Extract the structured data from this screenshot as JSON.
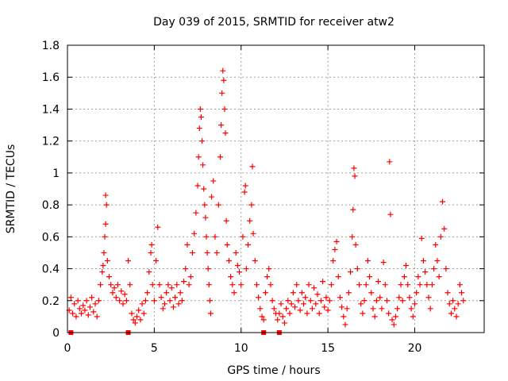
{
  "chart_data": {
    "type": "scatter",
    "title": "Day 039 of 2015, SRMTID for receiver atw2",
    "xlabel": "GPS time / hours",
    "ylabel": "SRMTID / TECUs",
    "xlim": [
      0,
      24
    ],
    "ylim": [
      0,
      1.8
    ],
    "x_ticks": [
      0,
      5,
      10,
      15,
      20
    ],
    "x_tick_labels": [
      "0",
      "5",
      "10",
      "15",
      "20"
    ],
    "y_ticks": [
      0,
      0.2,
      0.4,
      0.6,
      0.8,
      1,
      1.2,
      1.4,
      1.6,
      1.8
    ],
    "y_tick_labels": [
      "0",
      "0.2",
      "0.4",
      "0.6",
      "0.8",
      "1",
      "1.2",
      "1.4",
      "1.6",
      "1.8"
    ],
    "grid": true,
    "marker": "+",
    "colors": {
      "series": "#ff0000",
      "axes": "#000000",
      "grid": "#a0a0a0"
    },
    "series": [
      {
        "name": "SRMTID",
        "points": [
          [
            0.1,
            0.14
          ],
          [
            0.2,
            0.22
          ],
          [
            0.3,
            0.12
          ],
          [
            0.4,
            0.18
          ],
          [
            0.5,
            0.1
          ],
          [
            0.6,
            0.2
          ],
          [
            0.7,
            0.15
          ],
          [
            0.8,
            0.12
          ],
          [
            0.9,
            0.17
          ],
          [
            1.0,
            0.14
          ],
          [
            1.1,
            0.2
          ],
          [
            1.2,
            0.11
          ],
          [
            1.3,
            0.16
          ],
          [
            1.4,
            0.22
          ],
          [
            1.5,
            0.13
          ],
          [
            1.6,
            0.18
          ],
          [
            1.7,
            0.1
          ],
          [
            1.8,
            0.2
          ],
          [
            1.9,
            0.3
          ],
          [
            2.0,
            0.38
          ],
          [
            2.05,
            0.42
          ],
          [
            2.1,
            0.5
          ],
          [
            2.15,
            0.6
          ],
          [
            2.2,
            0.68
          ],
          [
            2.25,
            0.8
          ],
          [
            2.2,
            0.86
          ],
          [
            2.3,
            0.45
          ],
          [
            2.4,
            0.35
          ],
          [
            2.5,
            0.3
          ],
          [
            2.6,
            0.25
          ],
          [
            2.7,
            0.28
          ],
          [
            2.8,
            0.22
          ],
          [
            2.9,
            0.3
          ],
          [
            3.0,
            0.2
          ],
          [
            3.1,
            0.26
          ],
          [
            3.2,
            0.18
          ],
          [
            3.3,
            0.24
          ],
          [
            3.4,
            0.2
          ],
          [
            3.5,
            0.45
          ],
          [
            3.6,
            0.3
          ],
          [
            3.7,
            0.12
          ],
          [
            3.8,
            0.08
          ],
          [
            3.9,
            0.06
          ],
          [
            4.0,
            0.1
          ],
          [
            4.1,
            0.14
          ],
          [
            4.2,
            0.08
          ],
          [
            4.3,
            0.18
          ],
          [
            4.4,
            0.12
          ],
          [
            4.5,
            0.2
          ],
          [
            4.6,
            0.25
          ],
          [
            4.7,
            0.38
          ],
          [
            4.8,
            0.5
          ],
          [
            4.85,
            0.55
          ],
          [
            4.9,
            0.3
          ],
          [
            5.0,
            0.2
          ],
          [
            5.1,
            0.45
          ],
          [
            5.2,
            0.66
          ],
          [
            5.3,
            0.3
          ],
          [
            5.4,
            0.22
          ],
          [
            5.5,
            0.15
          ],
          [
            5.6,
            0.18
          ],
          [
            5.7,
            0.25
          ],
          [
            5.8,
            0.3
          ],
          [
            5.9,
            0.2
          ],
          [
            6.0,
            0.28
          ],
          [
            6.1,
            0.16
          ],
          [
            6.2,
            0.22
          ],
          [
            6.3,
            0.3
          ],
          [
            6.4,
            0.18
          ],
          [
            6.5,
            0.25
          ],
          [
            6.6,
            0.2
          ],
          [
            6.7,
            0.32
          ],
          [
            6.8,
            0.4
          ],
          [
            6.9,
            0.55
          ],
          [
            7.0,
            0.3
          ],
          [
            7.1,
            0.35
          ],
          [
            7.2,
            0.5
          ],
          [
            7.3,
            0.62
          ],
          [
            7.4,
            0.75
          ],
          [
            7.5,
            0.92
          ],
          [
            7.55,
            1.1
          ],
          [
            7.6,
            1.28
          ],
          [
            7.65,
            1.4
          ],
          [
            7.7,
            1.35
          ],
          [
            7.75,
            1.2
          ],
          [
            7.8,
            1.05
          ],
          [
            7.85,
            0.9
          ],
          [
            7.9,
            0.8
          ],
          [
            7.95,
            0.72
          ],
          [
            8.0,
            0.6
          ],
          [
            8.05,
            0.5
          ],
          [
            8.1,
            0.4
          ],
          [
            8.15,
            0.3
          ],
          [
            8.2,
            0.2
          ],
          [
            8.25,
            0.12
          ],
          [
            8.3,
            0.85
          ],
          [
            8.4,
            0.95
          ],
          [
            8.5,
            0.6
          ],
          [
            8.6,
            0.5
          ],
          [
            8.7,
            0.8
          ],
          [
            8.8,
            1.1
          ],
          [
            8.85,
            1.3
          ],
          [
            8.9,
            1.5
          ],
          [
            8.95,
            1.64
          ],
          [
            9.0,
            1.58
          ],
          [
            9.05,
            1.4
          ],
          [
            9.1,
            1.25
          ],
          [
            9.15,
            0.7
          ],
          [
            9.2,
            0.55
          ],
          [
            9.3,
            0.45
          ],
          [
            9.4,
            0.35
          ],
          [
            9.5,
            0.3
          ],
          [
            9.6,
            0.25
          ],
          [
            9.7,
            0.5
          ],
          [
            9.8,
            0.42
          ],
          [
            9.9,
            0.38
          ],
          [
            10.0,
            0.3
          ],
          [
            10.1,
            0.6
          ],
          [
            10.2,
            0.88
          ],
          [
            10.25,
            0.92
          ],
          [
            10.3,
            0.4
          ],
          [
            10.4,
            0.55
          ],
          [
            10.5,
            0.7
          ],
          [
            10.6,
            0.8
          ],
          [
            10.65,
            1.04
          ],
          [
            10.7,
            0.62
          ],
          [
            10.8,
            0.45
          ],
          [
            10.9,
            0.3
          ],
          [
            11.0,
            0.22
          ],
          [
            11.1,
            0.15
          ],
          [
            11.2,
            0.1
          ],
          [
            11.3,
            0.08
          ],
          [
            11.4,
            0.25
          ],
          [
            11.5,
            0.35
          ],
          [
            11.6,
            0.4
          ],
          [
            11.7,
            0.3
          ],
          [
            11.8,
            0.2
          ],
          [
            11.9,
            0.15
          ],
          [
            12.0,
            0.12
          ],
          [
            12.1,
            0.08
          ],
          [
            12.2,
            0.12
          ],
          [
            12.3,
            0.18
          ],
          [
            12.4,
            0.1
          ],
          [
            12.5,
            0.06
          ],
          [
            12.6,
            0.15
          ],
          [
            12.7,
            0.2
          ],
          [
            12.8,
            0.12
          ],
          [
            12.9,
            0.18
          ],
          [
            13.0,
            0.25
          ],
          [
            13.1,
            0.16
          ],
          [
            13.2,
            0.3
          ],
          [
            13.3,
            0.2
          ],
          [
            13.4,
            0.14
          ],
          [
            13.5,
            0.25
          ],
          [
            13.6,
            0.18
          ],
          [
            13.7,
            0.22
          ],
          [
            13.8,
            0.12
          ],
          [
            13.9,
            0.3
          ],
          [
            14.0,
            0.2
          ],
          [
            14.1,
            0.15
          ],
          [
            14.2,
            0.28
          ],
          [
            14.3,
            0.18
          ],
          [
            14.4,
            0.24
          ],
          [
            14.5,
            0.12
          ],
          [
            14.6,
            0.2
          ],
          [
            14.7,
            0.32
          ],
          [
            14.8,
            0.16
          ],
          [
            14.9,
            0.22
          ],
          [
            15.0,
            0.14
          ],
          [
            15.1,
            0.2
          ],
          [
            15.2,
            0.3
          ],
          [
            15.3,
            0.45
          ],
          [
            15.4,
            0.52
          ],
          [
            15.5,
            0.57
          ],
          [
            15.6,
            0.35
          ],
          [
            15.7,
            0.22
          ],
          [
            15.8,
            0.16
          ],
          [
            15.9,
            0.1
          ],
          [
            16.0,
            0.05
          ],
          [
            16.1,
            0.15
          ],
          [
            16.2,
            0.25
          ],
          [
            16.3,
            0.38
          ],
          [
            16.4,
            0.6
          ],
          [
            16.45,
            0.77
          ],
          [
            16.5,
            1.03
          ],
          [
            16.55,
            0.98
          ],
          [
            16.6,
            0.55
          ],
          [
            16.7,
            0.4
          ],
          [
            16.8,
            0.3
          ],
          [
            16.9,
            0.18
          ],
          [
            17.0,
            0.12
          ],
          [
            17.1,
            0.2
          ],
          [
            17.2,
            0.3
          ],
          [
            17.3,
            0.45
          ],
          [
            17.4,
            0.35
          ],
          [
            17.5,
            0.25
          ],
          [
            17.6,
            0.15
          ],
          [
            17.7,
            0.1
          ],
          [
            17.8,
            0.2
          ],
          [
            17.9,
            0.32
          ],
          [
            18.0,
            0.22
          ],
          [
            18.1,
            0.15
          ],
          [
            18.2,
            0.44
          ],
          [
            18.3,
            0.3
          ],
          [
            18.4,
            0.2
          ],
          [
            18.5,
            0.12
          ],
          [
            18.55,
            1.07
          ],
          [
            18.6,
            0.74
          ],
          [
            18.7,
            0.08
          ],
          [
            18.8,
            0.05
          ],
          [
            18.9,
            0.1
          ],
          [
            19.0,
            0.15
          ],
          [
            19.1,
            0.22
          ],
          [
            19.2,
            0.3
          ],
          [
            19.3,
            0.2
          ],
          [
            19.4,
            0.35
          ],
          [
            19.5,
            0.42
          ],
          [
            19.6,
            0.3
          ],
          [
            19.7,
            0.22
          ],
          [
            19.8,
            0.15
          ],
          [
            19.9,
            0.1
          ],
          [
            20.0,
            0.18
          ],
          [
            20.1,
            0.25
          ],
          [
            20.2,
            0.35
          ],
          [
            20.3,
            0.3
          ],
          [
            20.4,
            0.59
          ],
          [
            20.5,
            0.45
          ],
          [
            20.6,
            0.38
          ],
          [
            20.7,
            0.3
          ],
          [
            20.8,
            0.22
          ],
          [
            20.9,
            0.15
          ],
          [
            21.0,
            0.3
          ],
          [
            21.1,
            0.4
          ],
          [
            21.2,
            0.55
          ],
          [
            21.3,
            0.45
          ],
          [
            21.4,
            0.35
          ],
          [
            21.5,
            0.6
          ],
          [
            21.6,
            0.82
          ],
          [
            21.7,
            0.65
          ],
          [
            21.8,
            0.4
          ],
          [
            21.9,
            0.25
          ],
          [
            22.0,
            0.18
          ],
          [
            22.1,
            0.12
          ],
          [
            22.2,
            0.2
          ],
          [
            22.3,
            0.15
          ],
          [
            22.4,
            0.1
          ],
          [
            22.5,
            0.18
          ],
          [
            22.6,
            0.3
          ],
          [
            22.7,
            0.25
          ],
          [
            22.8,
            0.2
          ]
        ]
      },
      {
        "name": "gaps",
        "marker": "square",
        "points": [
          [
            0.2,
            0
          ],
          [
            3.5,
            0
          ],
          [
            11.3,
            0
          ],
          [
            12.2,
            0
          ]
        ]
      }
    ]
  }
}
